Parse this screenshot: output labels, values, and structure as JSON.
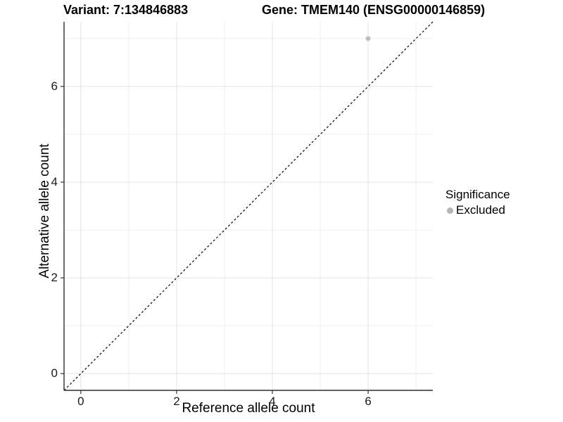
{
  "titles": {
    "variant": "Variant: 7:134846883",
    "gene": "Gene: TMEM140 (ENSG00000146859)"
  },
  "chart_data": {
    "type": "scatter",
    "xlabel": "Reference allele count",
    "ylabel": "Alternative allele count",
    "xlim": [
      -0.35,
      7.35
    ],
    "ylim": [
      -0.35,
      7.35
    ],
    "x_major_ticks": [
      0,
      2,
      4,
      6
    ],
    "y_major_ticks": [
      0,
      2,
      4,
      6
    ],
    "x_minor_ticks": [
      1,
      3,
      5,
      7
    ],
    "y_minor_ticks": [
      1,
      3,
      5,
      7
    ],
    "grid": true,
    "reference_line": {
      "type": "identity",
      "style": "dashed",
      "color": "#000000"
    },
    "series": [
      {
        "name": "Excluded",
        "color": "#bebebe",
        "point_radius": 3.5,
        "points": [
          {
            "x": 6,
            "y": 7
          }
        ]
      }
    ],
    "legend": {
      "title": "Significance",
      "position": "right",
      "entries": [
        {
          "label": "Excluded",
          "color": "#b5b5b5"
        }
      ]
    }
  },
  "colors": {
    "background": "#ffffff",
    "grid_major": "#e3e3e3",
    "grid_minor": "#efefef",
    "axis_line": "#2f2f2f",
    "tick_mark": "#333333",
    "text": "#000000"
  }
}
